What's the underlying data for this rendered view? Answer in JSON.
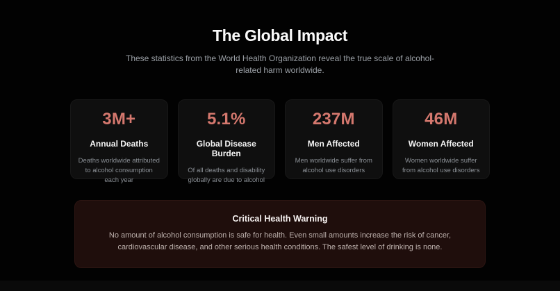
{
  "section": {
    "title": "The Global Impact",
    "subtitle": "These statistics from the World Health Organization reveal the true scale of alcohol-related harm worldwide."
  },
  "stats": [
    {
      "value": "3M+",
      "label": "Annual Deaths",
      "description": "Deaths worldwide attributed to alcohol consumption each year"
    },
    {
      "value": "5.1%",
      "label": "Global Disease Burden",
      "description": "Of all deaths and disability globally are due to alcohol"
    },
    {
      "value": "237M",
      "label": "Men Affected",
      "description": "Men worldwide suffer from alcohol use disorders"
    },
    {
      "value": "46M",
      "label": "Women Affected",
      "description": "Women worldwide suffer from alcohol use disorders"
    }
  ],
  "warning": {
    "title": "Critical Health Warning",
    "body": "No amount of alcohol consumption is safe for health. Even small amounts increase the risk of cancer, cardiovascular disease, and other serious health conditions. The safest level of drinking is none."
  },
  "colors": {
    "accent": "#d5786e",
    "page_bg": "#020202",
    "card_bg": "#0f0f0f",
    "warning_bg": "#1f0e0c"
  }
}
